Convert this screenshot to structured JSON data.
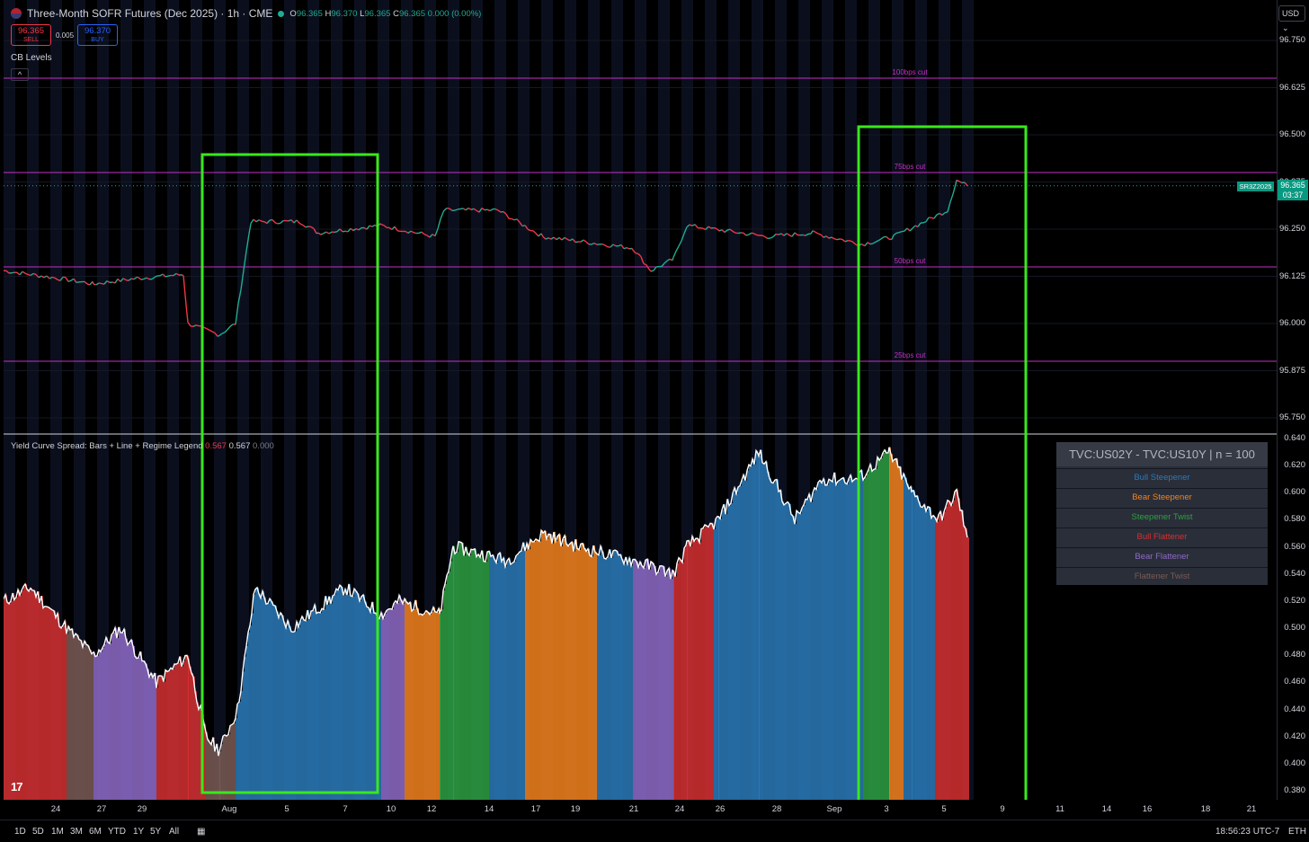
{
  "header": {
    "title": "Three-Month SOFR Futures (Dec 2025) · 1h · CME",
    "ohlc": {
      "o_label": "O",
      "o": "96.365",
      "h_label": "H",
      "h": "96.370",
      "l_label": "L",
      "l": "96.365",
      "c_label": "C",
      "c": "96.365",
      "change": "0.000 (0.00%)"
    },
    "sell_price": "96.365",
    "sell_label": "SELL",
    "buy_price": "96.370",
    "buy_label": "BUY",
    "spread": "0.005",
    "cb_levels_label": "CB Levels",
    "collapse_icon": "^"
  },
  "currency": "USD",
  "symbol_tag": "SR3Z2025",
  "last_price_tag": {
    "price": "96.365",
    "countdown": "03:37"
  },
  "price_axis": {
    "labels": [
      "96.750",
      "96.625",
      "96.500",
      "96.375",
      "96.250",
      "96.125",
      "96.000",
      "95.875",
      "95.750"
    ]
  },
  "cb_lines": [
    {
      "label": "100bps cut",
      "price": 96.65
    },
    {
      "label": "75bps cut",
      "price": 96.4
    },
    {
      "label": "50bps cut",
      "price": 96.15
    },
    {
      "label": "25bps cut",
      "price": 95.9
    }
  ],
  "indicator": {
    "title": "Yield Curve Spread: Bars + Line + Regime Legend",
    "value1": "0.567",
    "value2": "0.567",
    "value3": "0.000",
    "axis_labels": [
      "0.640",
      "0.620",
      "0.600",
      "0.580",
      "0.560",
      "0.540",
      "0.520",
      "0.500",
      "0.480",
      "0.460",
      "0.440",
      "0.420",
      "0.400",
      "0.380"
    ]
  },
  "legend": {
    "header": "TVC:US02Y - TVC:US10Y | n = 100",
    "rows": [
      {
        "label": "Bull Steepener",
        "color": "#2a7ab8"
      },
      {
        "label": "Bear Steepener",
        "color": "#f5821f"
      },
      {
        "label": "Steepener Twist",
        "color": "#2ea043"
      },
      {
        "label": "Bull Flattener",
        "color": "#d63031"
      },
      {
        "label": "Bear Flattener",
        "color": "#8e6bc8"
      },
      {
        "label": "Flattener Twist",
        "color": "#7a5a55"
      }
    ]
  },
  "time_axis": {
    "labels": [
      "24",
      "27",
      "29",
      "Aug",
      "5",
      "7",
      "10",
      "12",
      "14",
      "17",
      "19",
      "21",
      "24",
      "26",
      "28",
      "Sep",
      "3",
      "5",
      "9",
      "11",
      "14",
      "16",
      "18",
      "21"
    ]
  },
  "bottom_bar": {
    "ranges": [
      "1D",
      "5D",
      "1M",
      "3M",
      "6M",
      "YTD",
      "1Y",
      "5Y",
      "All"
    ],
    "clock": "18:56:23 UTC-7",
    "session": "ETH"
  },
  "colors": {
    "up": "#22ab94",
    "down": "#f23645",
    "cb_line": "#c530c5",
    "highlight_box": "#39e81c"
  },
  "chart_data": [
    {
      "type": "line",
      "title": "Three-Month SOFR Futures (Dec 2025) · 1h · CME",
      "series": [
        {
          "name": "SR3Z2025",
          "x": [
            "24",
            "27",
            "29",
            "Aug",
            "5",
            "7",
            "10",
            "12",
            "14",
            "17",
            "19",
            "21",
            "24",
            "26",
            "28",
            "Sep",
            "3",
            "5"
          ],
          "values": [
            96.14,
            96.12,
            96.13,
            96.0,
            96.28,
            96.26,
            96.25,
            96.26,
            96.26,
            96.22,
            96.21,
            96.16,
            96.22,
            96.22,
            96.23,
            96.22,
            96.25,
            96.36
          ]
        }
      ],
      "ylim": [
        95.75,
        96.75
      ]
    },
    {
      "type": "bar",
      "title": "Yield Curve Spread: Bars + Line + Regime Legend",
      "categories": [
        "24",
        "27",
        "29",
        "Aug",
        "5",
        "7",
        "10",
        "12",
        "14",
        "17",
        "19",
        "21",
        "24",
        "26",
        "28",
        "Sep",
        "3",
        "5"
      ],
      "values": [
        0.52,
        0.49,
        0.47,
        0.41,
        0.53,
        0.51,
        0.5,
        0.56,
        0.55,
        0.56,
        0.55,
        0.54,
        0.56,
        0.6,
        0.62,
        0.61,
        0.61,
        0.567
      ],
      "ylim": [
        0.37,
        0.645
      ]
    }
  ]
}
